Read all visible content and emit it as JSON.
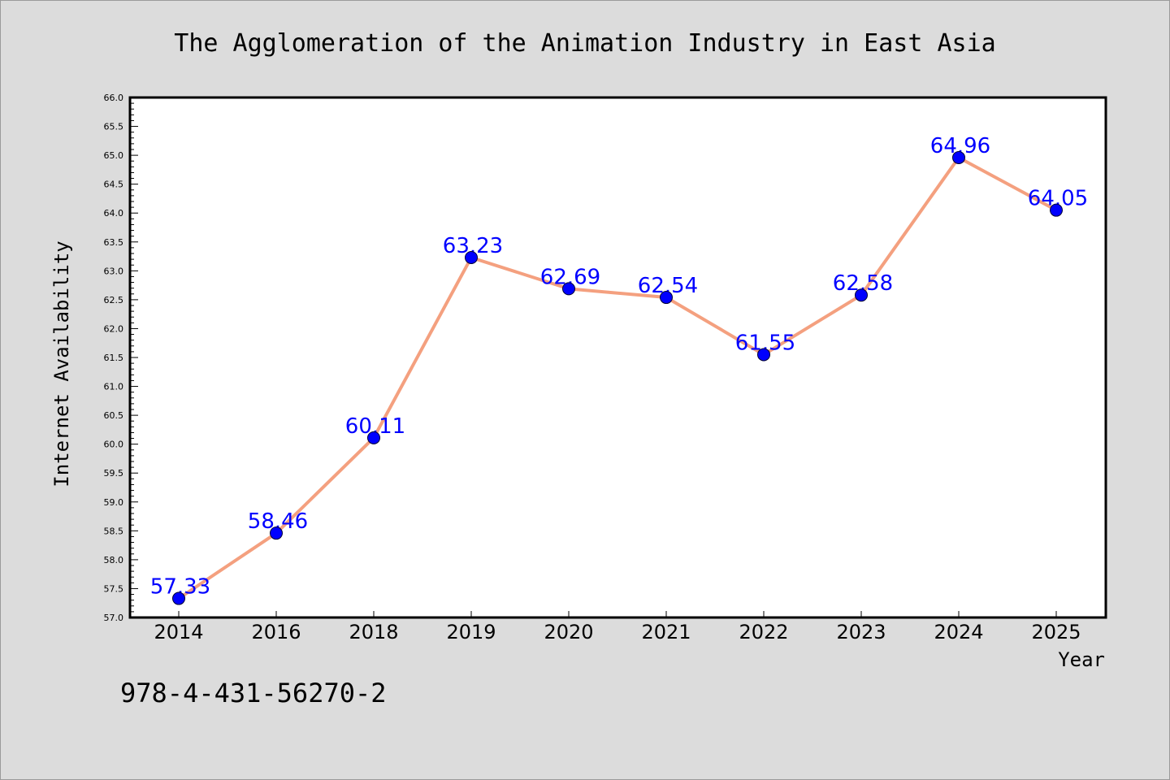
{
  "chart_data": {
    "type": "line",
    "title": "The Agglomeration of the Animation Industry in East Asia",
    "xlabel": "Year",
    "ylabel": "Internet Availability",
    "categories": [
      "2014",
      "2016",
      "2018",
      "2019",
      "2020",
      "2021",
      "2022",
      "2023",
      "2024",
      "2025"
    ],
    "series": [
      {
        "values": [
          57.33,
          58.46,
          60.11,
          63.23,
          62.69,
          62.54,
          61.55,
          62.58,
          64.96,
          64.05
        ],
        "labels": [
          "57.33",
          "58.46",
          "60.11",
          "63.23",
          "62.69",
          "62.54",
          "61.55",
          "62.58",
          "64.96",
          "64.05"
        ]
      }
    ],
    "ylim": [
      57.0,
      66.0
    ],
    "yticks": [
      "57.0",
      "57.5",
      "58.0",
      "58.5",
      "59.0",
      "59.5",
      "60.0",
      "60.5",
      "61.0",
      "61.5",
      "62.0",
      "62.5",
      "63.0",
      "63.5",
      "64.0",
      "64.5",
      "65.0",
      "65.5",
      "66.0"
    ],
    "grid": false,
    "line_color": "#f4a07f",
    "marker_color": "#0000ff",
    "label_color": "#0000ff",
    "plot_background": "#ffffff",
    "figure_background": "#dcdcdc"
  },
  "footnote": "978-4-431-56270-2"
}
